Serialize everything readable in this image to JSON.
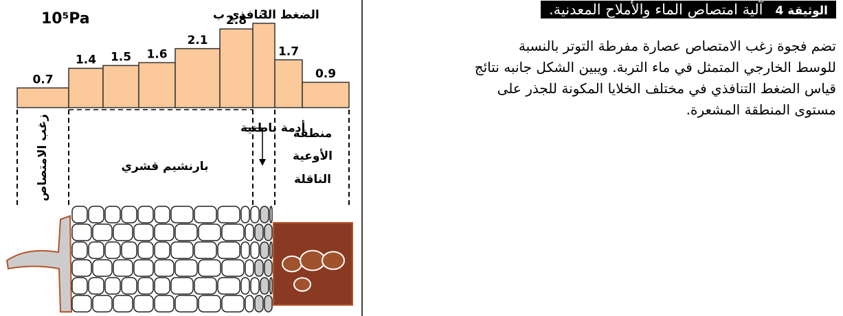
{
  "document": {
    "label": "الوثيقة 4",
    "heading": "آلية امتصاص الماء والأملاح المعدنية.",
    "paragraph_lines": [
      "تضم فجوة زغب الامتصاص عصارة مفرطة التوتر بالنسبة",
      "للوسط الخارجي المتمثل في ماء التربة. ويبين الشكل جانبه نتائج",
      "قياس الضغط التنافذي في مختلف الخلايا المكونة للجذر على",
      "مستوى المنطقة المشعرة."
    ]
  },
  "chart_data": {
    "type": "bar",
    "title": "الضغط التنافذي ب",
    "unit": "10⁵Pa",
    "values": [
      0.7,
      1.4,
      1.5,
      1.6,
      2.1,
      2.8,
      3,
      1.7,
      0.9
    ],
    "color": "#fbc99a",
    "regions": {
      "hair": "زغب الامتصاص",
      "endodermis": "أدمة باطنية",
      "cortex": "بارنشيم قشري",
      "vessels": [
        "منطقة",
        "الأوعية",
        "الناقلة"
      ]
    }
  }
}
